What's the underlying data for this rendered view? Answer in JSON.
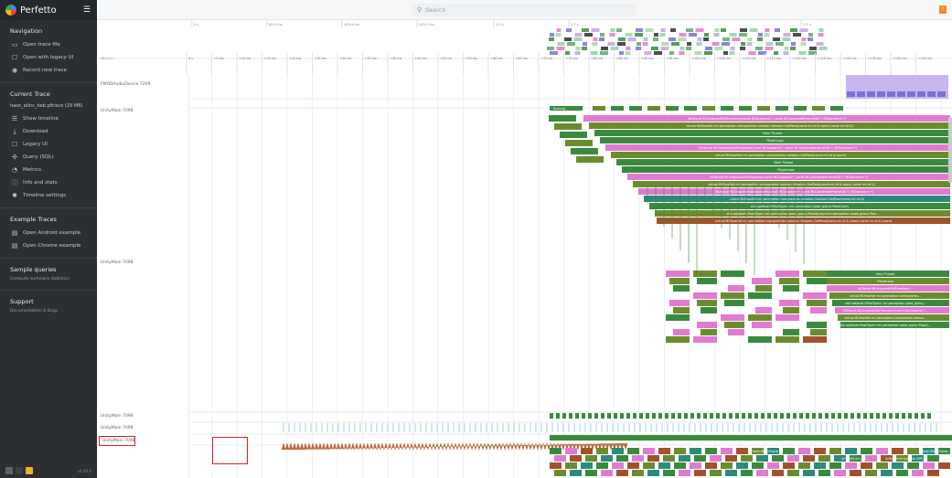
{
  "app": {
    "name": "Perfetto",
    "menu_icon": "hamburger-icon"
  },
  "search": {
    "placeholder": "Search"
  },
  "sidebar": {
    "navigation": {
      "title": "Navigation",
      "items": [
        {
          "label": "Open trace file",
          "icon": "folder-icon"
        },
        {
          "label": "Open with legacy UI",
          "icon": "window-icon"
        },
        {
          "label": "Record new trace",
          "icon": "record-icon"
        }
      ]
    },
    "current_trace": {
      "title": "Current Trace",
      "file": "haox_atinc_deb.pftrace (29 MB)",
      "items": [
        {
          "label": "Show timeline",
          "icon": "timeline-icon"
        },
        {
          "label": "Download",
          "icon": "download-icon"
        },
        {
          "label": "Legacy UI",
          "icon": "window-icon"
        },
        {
          "label": "Query (SQL)",
          "icon": "query-icon"
        },
        {
          "label": "Metrics",
          "icon": "metrics-icon"
        },
        {
          "label": "Info and stats",
          "icon": "info-icon"
        },
        {
          "label": "Timeline settings",
          "icon": "gear-icon"
        }
      ]
    },
    "example_traces": {
      "title": "Example Traces",
      "items": [
        {
          "label": "Open Android example",
          "icon": "file-icon"
        },
        {
          "label": "Open Chrome example",
          "icon": "file-icon"
        }
      ]
    },
    "sample_queries": {
      "title": "Sample queries",
      "subtitle": "Compute summary statistics"
    },
    "support": {
      "title": "Support",
      "subtitle": "Documentation & Bugs"
    },
    "version": "v4.40.0"
  },
  "timeline": {
    "top_ticks": [
      "0 s",
      "89.2 ms",
      "163.4 ms",
      "245.1 ms",
      "1.5 s",
      "1.7 s",
      "2.1 s"
    ],
    "ruler_start": "244.1 s",
    "ruler_ticks": [
      "0 s",
      "+5 ms",
      "+10 ms",
      "+15 ms",
      "+20 ms",
      "+25 ms",
      "+30 ms",
      "+35 ms",
      "+40 ms",
      "+45 ms",
      "+50 ms",
      "+55 ms",
      "+60 ms",
      "+65 ms",
      "+70 ms",
      "+75 ms",
      "+80 ms",
      "+85 ms",
      "+90 ms",
      "+95 ms",
      "+100 ms",
      "+105 ms",
      "+110 ms",
      "+115 ms",
      "+120 ms",
      "+125 ms",
      "+130 ms",
      "+135 ms",
      "+140 ms",
      "+145 ms"
    ],
    "tracks": [
      {
        "label": "FMODAudioDevice 7269"
      },
      {
        "label": "UnityMain 7098"
      },
      {
        "label": "UnityMain 7098"
      },
      {
        "label": "UnityMain 7098"
      },
      {
        "label": "UnityMain 7098"
      },
      {
        "label": "UnityMain 7098"
      }
    ],
    "slices": [
      "MLResult MLSnapshotGetTransform(const MLSnapshot *, const MLCoordinateFrameUID *, MLTransform *)",
      "virtual MLPoseSet ml::perception::components::session::Session::GetPose(const ml::id & coord, const ml::id &)",
      "Main Thread",
      "PlayerLoop",
      "MLResult MLSnapshotGetTransform(const MLSnapshot *, const MLCoordinateFrameUID *, MLTransform *)",
      "virtual MLPoseSet ml::perception::components::session::GetPose(const ml::id & coord)",
      "Main Thread",
      "PlayerLoop",
      "MLResult MLSnapshotGetTransform(const MLSnapshot *, const MLCoordinateFrameUID *, MLTransform *)",
      "virtual MLPoseSet ml::perception::components::session::Session::GetPose(const ml::id & coord, const ml::id &)",
      "MLResult MLSnapshotGetTransform(const MLSnapshot *, const MLCoordinateFrameUID *, MLTransform *)",
      "virtual MLPoseSet ml::perception::components::session::Session::GetPose(const ml::id &)",
      "std::optional<PoseType> ml::perception::pose_query::PoseQuery",
      "std::optional<PoseType> ml::perception::pose_query::PoseQuery<ml::perception::pose_query::Pos...",
      "virtual MLPoseSet ml::perception::components::session::Session::GetPose(const ml::id & coord, const ml::id & coord)"
    ],
    "deep_slices": [
      "Main Thread",
      "PlayerLoop",
      "MLResult MLSnapshotGetTransform...",
      "virtual MLPoseSet ml::perception::components...",
      "std::optional<PoseType> ml::perception::pose_query...",
      "MLResult MLSnapshotGetTransform(const MLSnapshot *...",
      "virtual MLPoseSet ml::perception::components::sessio...",
      "std::optional<PoseType> ml::perception::pose_query::PoseQ..."
    ],
    "bottom_labels": [
      "Client::BeginFrame",
      "Client::BeginFrame",
      "XrPassBt ml::asd...",
      "XrPassBt ml::session::DPF_w..."
    ],
    "running_label": "Running"
  },
  "colors": {
    "green": "#3a8a3e",
    "pink": "#e07bd0",
    "olive": "#6b8c2e",
    "teal": "#2e8a7a",
    "brown": "#a0522d",
    "selection": "#e0201b"
  }
}
